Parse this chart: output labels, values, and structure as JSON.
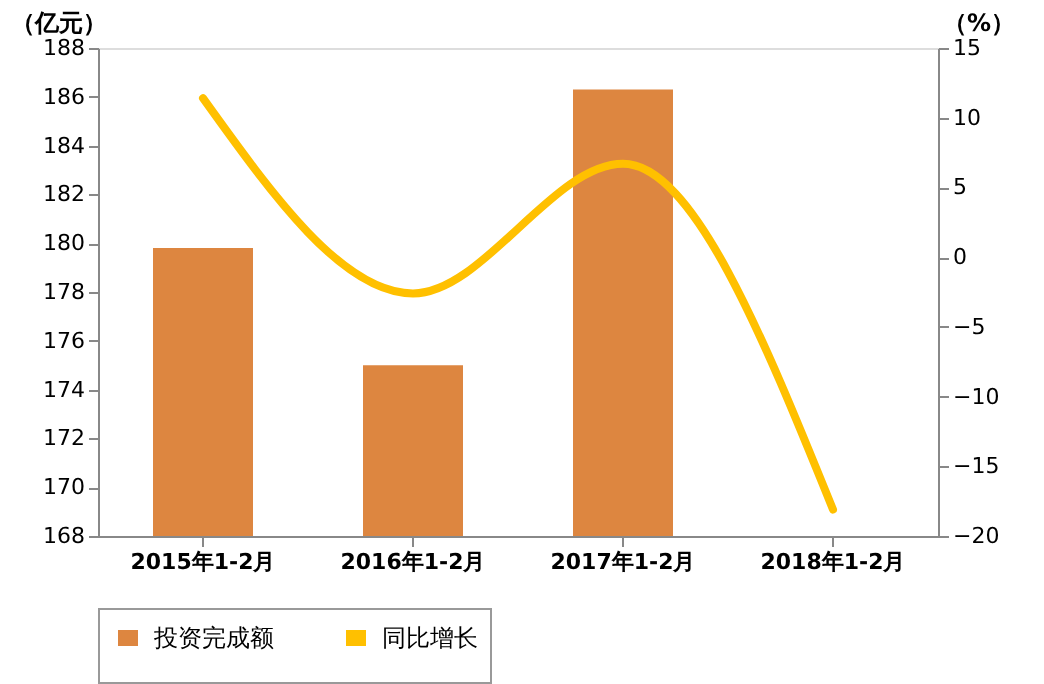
{
  "chart_data": {
    "type": "bar",
    "categories": [
      "2015年1-2月",
      "2016年1-2月",
      "2017年1-2月",
      "2018年1-2月"
    ],
    "ylabel": "（亿元）",
    "y2label": "（%）",
    "series": [
      {
        "name": "投资完成额",
        "color": "#dd8640",
        "values": [
          179.8,
          175.0,
          186.3,
          null
        ]
      },
      {
        "name": "同比增长",
        "type": "line",
        "axis": "y2",
        "color": "#ffc000",
        "values": [
          11.4,
          -2.6,
          6.7,
          -18.1
        ]
      }
    ],
    "ylim": [
      168,
      188
    ],
    "yticks": [
      168,
      170,
      172,
      174,
      176,
      178,
      180,
      182,
      184,
      186,
      188
    ],
    "y2lim": [
      -20,
      15
    ],
    "y2ticks": [
      -20,
      -15,
      -10,
      -5,
      0,
      5,
      10,
      15
    ],
    "legend": "bottom",
    "grid": false
  }
}
